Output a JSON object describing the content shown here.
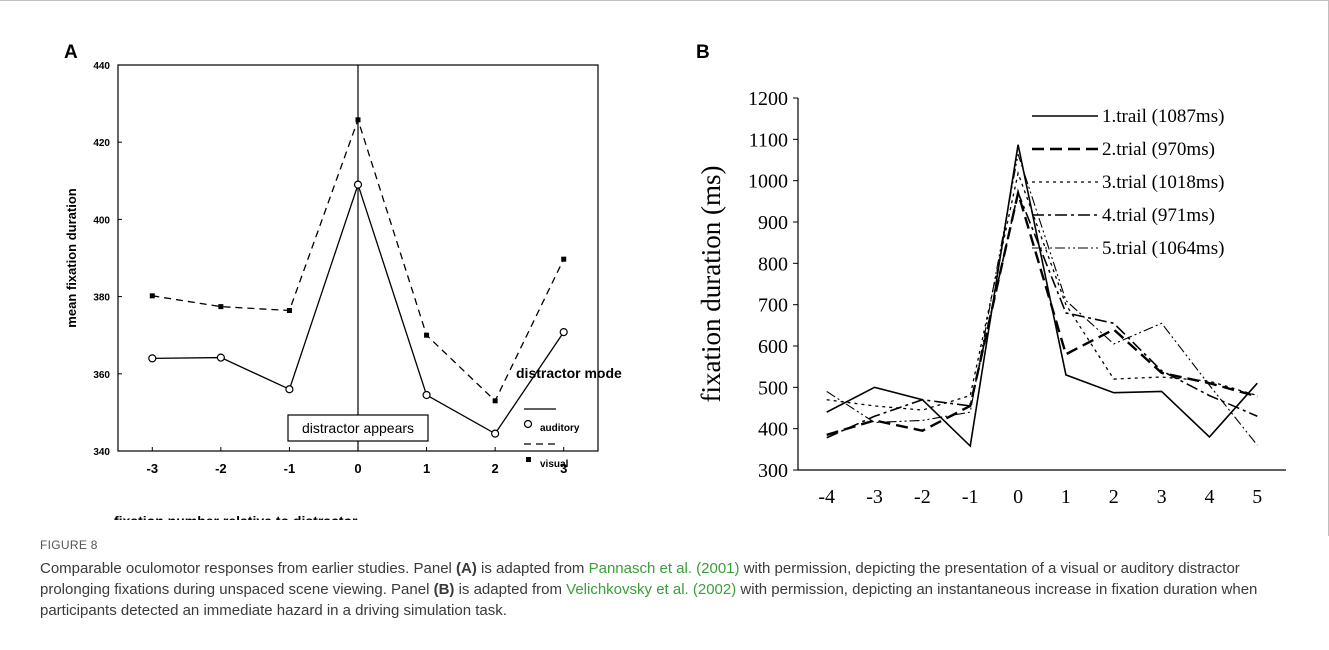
{
  "figure_label": "FIGURE 8",
  "caption": {
    "p1": "Comparable oculomotor responses from earlier studies. Panel ",
    "a_ref": "(A)",
    "p2": " is adapted from ",
    "link1": "Pannasch et al. (2001)",
    "p3": " with permission, depicting the presentation of a visual or auditory distractor prolonging fixations during unspaced scene viewing. Panel ",
    "b_ref": "(B)",
    "p4": " is adapted from ",
    "link2": "Velichkovsky et al. (2002)",
    "p5": " with permission, depicting an instantaneous increase in fixation duration when participants detected an immediate hazard in a driving simulation task."
  },
  "colors": {
    "link": "#3a9e3a",
    "line": "#000000"
  },
  "chart_data": [
    {
      "panel": "A",
      "type": "line",
      "xlabel": "fixation number relative to distractor",
      "ylabel": "mean fixation duration",
      "x": [
        -3,
        -2,
        -1,
        0,
        1,
        2,
        3
      ],
      "xlim": [
        -3.5,
        3.5
      ],
      "ylim": [
        340,
        440
      ],
      "yticks": [
        340,
        360,
        380,
        400,
        420,
        440
      ],
      "series": [
        {
          "name": "auditory",
          "style": "solid",
          "marker": "open-circle",
          "values": [
            364,
            364.2,
            356,
            409,
            354.5,
            344.5,
            370.8
          ]
        },
        {
          "name": "visual",
          "style": "dashed",
          "marker": "filled-square",
          "values": [
            380.2,
            377.4,
            376.4,
            425.8,
            370,
            353,
            389.7
          ]
        }
      ],
      "legend_title": "distractor mode",
      "annotation": "distractor appears",
      "vline_x": 0
    },
    {
      "panel": "B",
      "type": "line",
      "xlabel": "",
      "ylabel": "fixation duration (ms)",
      "x": [
        -4,
        -3,
        -2,
        -1,
        0,
        1,
        2,
        3,
        4,
        5
      ],
      "xlim": [
        -4.6,
        5.6
      ],
      "ylim": [
        300,
        1200
      ],
      "yticks": [
        300,
        400,
        500,
        600,
        700,
        800,
        900,
        1000,
        1100,
        1200
      ],
      "series": [
        {
          "name": "1.trail (1087ms)",
          "style": "solid",
          "values": [
            440,
            500,
            470,
            358,
            1087,
            530,
            487,
            490,
            380,
            510
          ]
        },
        {
          "name": "2.trial (970ms)",
          "style": "long-dash",
          "values": [
            385,
            420,
            395,
            455,
            970,
            580,
            640,
            535,
            510,
            478
          ]
        },
        {
          "name": "3.trial (1018ms)",
          "style": "dotted",
          "values": [
            470,
            455,
            445,
            480,
            1018,
            700,
            520,
            525,
            515,
            480
          ]
        },
        {
          "name": "4.trial (971ms)",
          "style": "dash-dot",
          "values": [
            378,
            430,
            470,
            455,
            971,
            680,
            655,
            540,
            480,
            430
          ]
        },
        {
          "name": "5.trial (1064ms)",
          "style": "dash-dot-dot",
          "values": [
            490,
            415,
            420,
            440,
            1064,
            710,
            605,
            655,
            505,
            360
          ]
        }
      ]
    }
  ]
}
